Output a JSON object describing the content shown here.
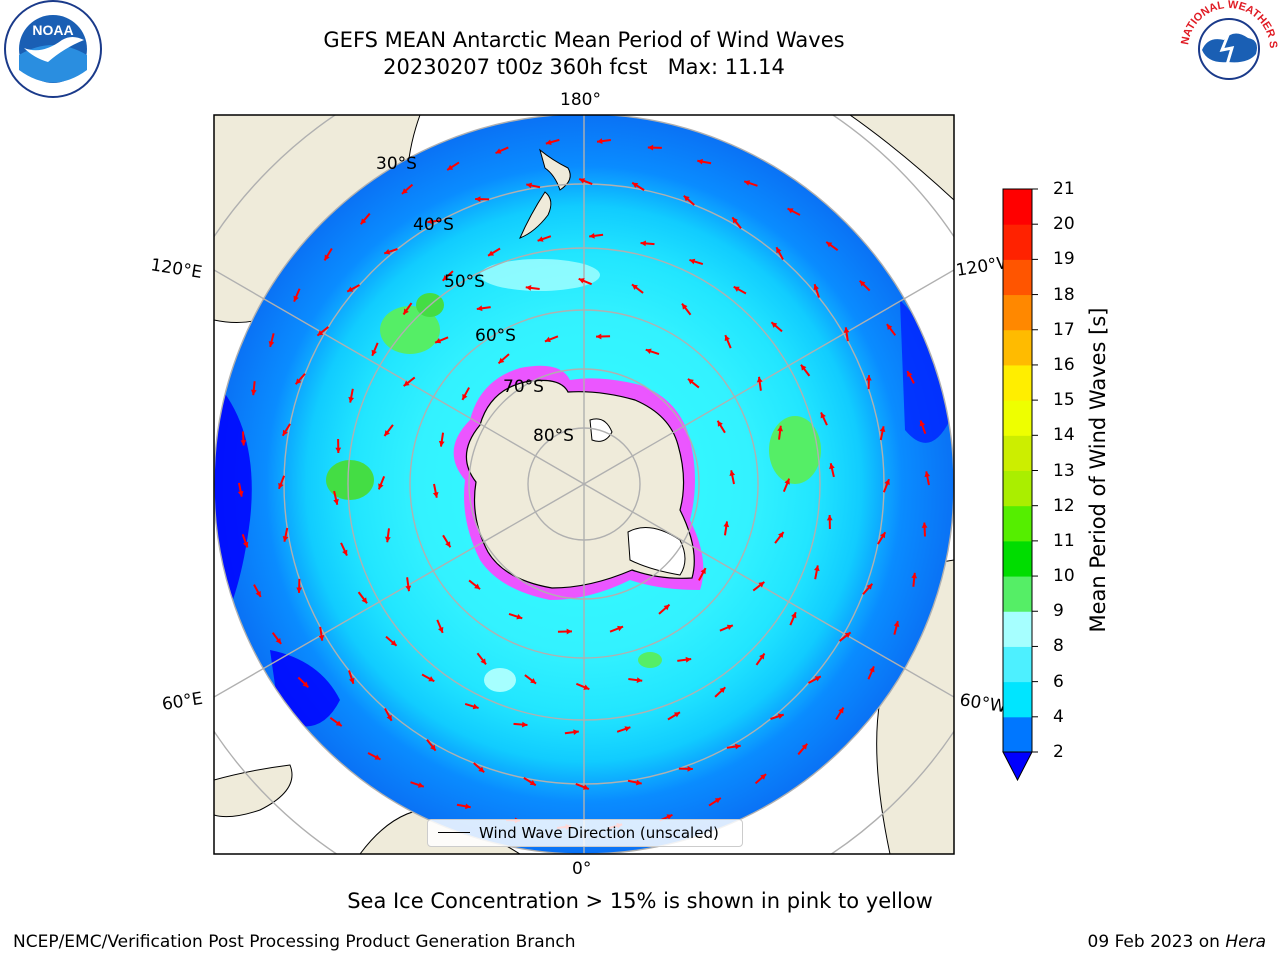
{
  "title": {
    "line1": "GEFS MEAN Antarctic Mean Period of Wind Waves",
    "line2": "20230207 t00z 360h fcst   Max: 11.14"
  },
  "map": {
    "projection": "south-polar-stereographic",
    "longitude_labels": {
      "top": "180°",
      "bottom": "0°",
      "upper_left": "120°E",
      "upper_right": "120°W",
      "lower_left": "60°E",
      "lower_right": "60°W"
    },
    "latitude_labels": [
      "30°S",
      "40°S",
      "50°S",
      "60°S",
      "70°S",
      "80°S"
    ],
    "arrow_color": "#ff0000",
    "land_color": "#efebda",
    "sea_ice_colors": [
      "#ff33ff",
      "#ffff66"
    ],
    "legend": "Wind Wave Direction (unscaled)"
  },
  "colorbar": {
    "label": "Mean Period of Wind Waves [s]",
    "ticks": [
      "2",
      "4",
      "6",
      "8",
      "9",
      "10",
      "11",
      "12",
      "13",
      "14",
      "15",
      "16",
      "17",
      "18",
      "19",
      "20",
      "21"
    ],
    "colors": [
      "#0000ff",
      "#0077ff",
      "#00e5ff",
      "#4df0ff",
      "#a6ffff",
      "#55ee66",
      "#00dd00",
      "#55ee00",
      "#aaee00",
      "#ccee00",
      "#eeff00",
      "#ffee00",
      "#ffbb00",
      "#ff8800",
      "#ff5500",
      "#ff2200",
      "#ff0000"
    ],
    "extend": "min"
  },
  "logos": {
    "left": "NOAA",
    "right": "NATIONAL WEATHER SERVICE"
  },
  "footer": {
    "note": "Sea Ice Concentration > 15% is shown in pink to yellow",
    "left": "NCEP/EMC/Verification Post Processing Product Generation Branch",
    "right_date": "09 Feb 2023 on ",
    "right_machine": "Hera"
  }
}
